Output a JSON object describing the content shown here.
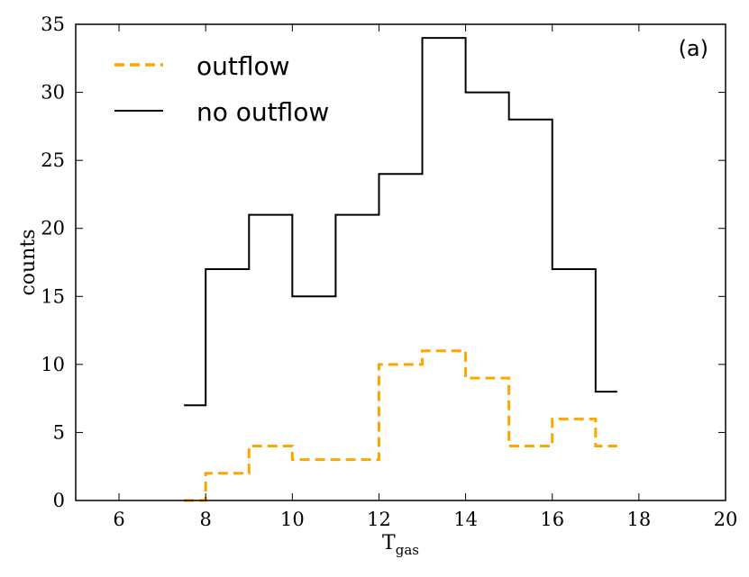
{
  "chart_data": {
    "type": "line",
    "title": "",
    "panel_label": "(a)",
    "xlabel": "T",
    "xlabel_sub": "gas",
    "ylabel": "counts",
    "xlim": [
      5,
      20
    ],
    "ylim": [
      0,
      35
    ],
    "xticks": [
      6,
      8,
      10,
      12,
      14,
      16,
      18,
      20
    ],
    "yticks": [
      0,
      5,
      10,
      15,
      20,
      25,
      30,
      35
    ],
    "grid": false,
    "legend_position": "top-left",
    "series": [
      {
        "name": "outflow",
        "color": "#FFA500",
        "style": "dashed",
        "x": [
          7.5,
          8.5,
          9.5,
          10.5,
          11.5,
          12.5,
          13.5,
          14.5,
          15.5,
          16.5,
          17.5
        ],
        "values": [
          0,
          2,
          4,
          3,
          3,
          10,
          11,
          9,
          4,
          6,
          4
        ]
      },
      {
        "name": "no outflow",
        "color": "#000000",
        "style": "solid",
        "x": [
          7.5,
          8.5,
          9.5,
          10.5,
          11.5,
          12.5,
          13.5,
          14.5,
          15.5,
          16.5,
          17.5
        ],
        "values": [
          7,
          17,
          21,
          15,
          21,
          24,
          34,
          30,
          28,
          17,
          8
        ]
      }
    ]
  }
}
